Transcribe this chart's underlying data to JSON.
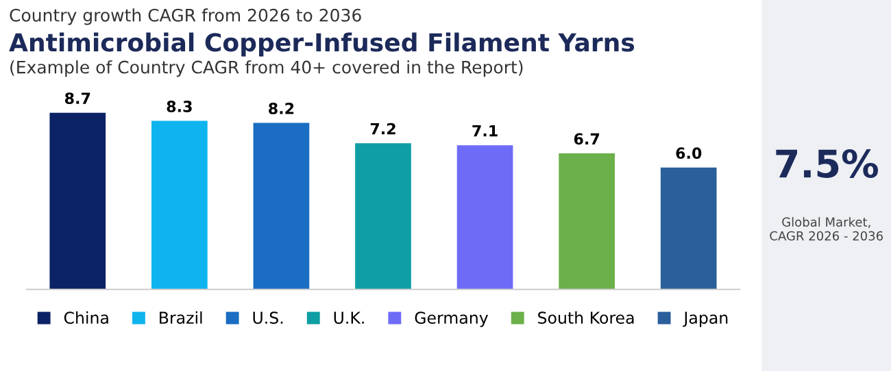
{
  "chart_data": [
    {
      "type": "bar",
      "title": "Antimicrobial Copper-Infused Filament Yarns",
      "subtitle": "Country growth CAGR from 2026 to 2036",
      "annotations": [
        "(Example of Country CAGR from 40+ covered in the Report)"
      ],
      "categories": [
        "China",
        "Brazil",
        "U.S.",
        "U.K.",
        "Germany",
        "South Korea",
        "Japan"
      ],
      "values": [
        8.7,
        8.3,
        8.2,
        7.2,
        7.1,
        6.7,
        6.0
      ],
      "value_labels": [
        "8.7",
        "8.3",
        "8.2",
        "7.2",
        "7.1",
        "6.7",
        "6.0"
      ],
      "colors": [
        "#0b2265",
        "#0fb4ee",
        "#1a6dc2",
        "#0f9ea3",
        "#6e6cf7",
        "#6bb04a",
        "#2b5f9c"
      ],
      "tick_labels": false
    },
    {
      "type": "other",
      "annotations": [
        "7.5%",
        "Global Market,\nCAGR 2026 - 2036"
      ]
    }
  ]
}
